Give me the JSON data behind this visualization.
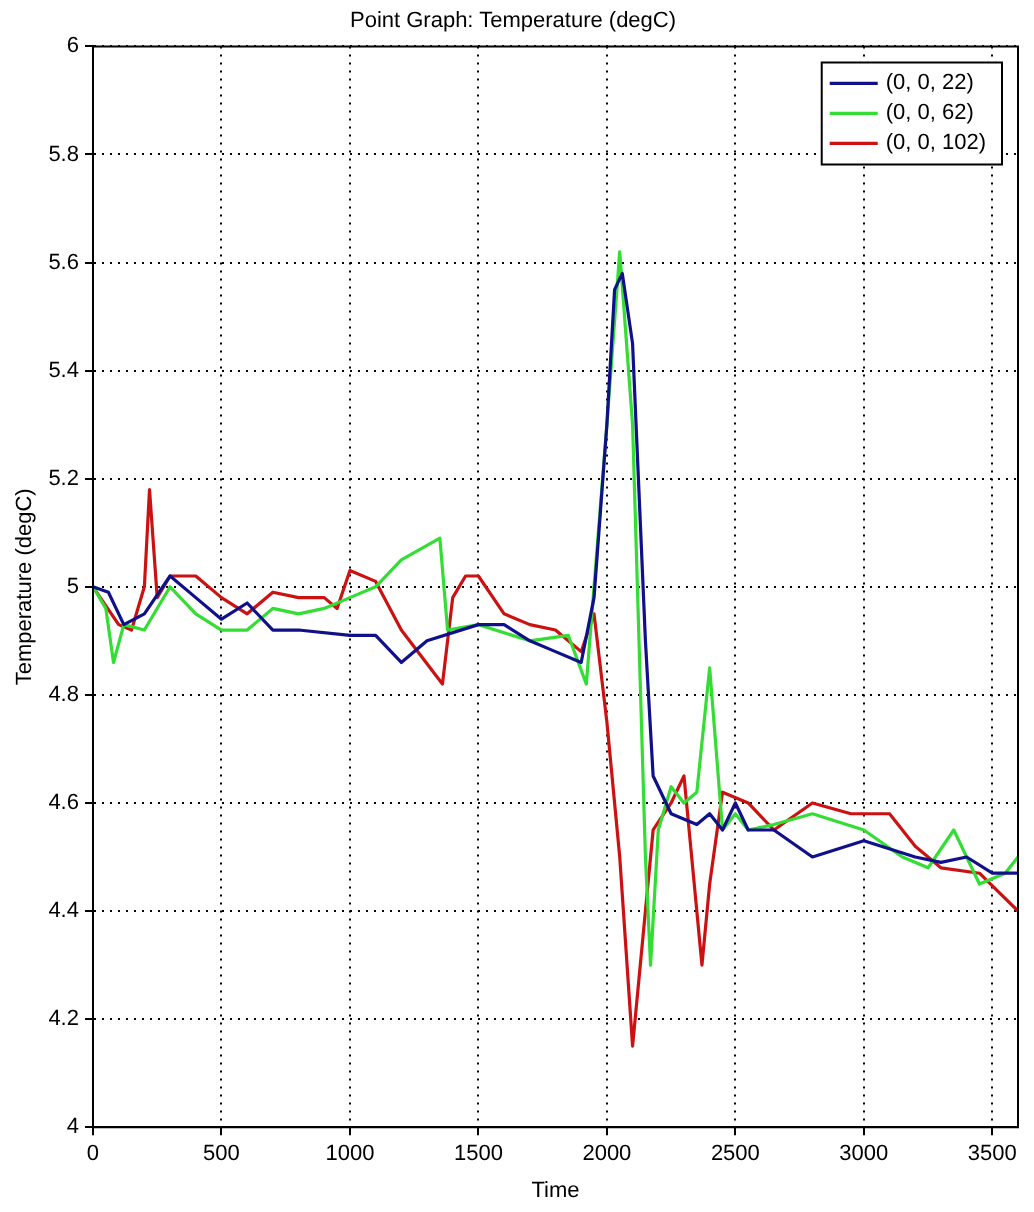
{
  "chart_data": {
    "type": "line",
    "title": "Point Graph: Temperature (degC)",
    "xlabel": "Time",
    "ylabel": "Temperature (degC)",
    "xlim": [
      0,
      3600
    ],
    "xticks": [
      0,
      500,
      1000,
      1500,
      2000,
      2500,
      3000,
      3500
    ],
    "ylim": [
      4,
      6
    ],
    "yticks": [
      4,
      4.2,
      4.4,
      4.6,
      4.8,
      5,
      5.2,
      5.4,
      5.6,
      5.8,
      6
    ],
    "grid": true,
    "legend": "top right",
    "line_style": "solid",
    "marker": "none",
    "series": [
      {
        "name": "(0, 0, 22)",
        "color": "#10108a",
        "x": [
          0,
          60,
          120,
          200,
          300,
          400,
          500,
          600,
          700,
          800,
          1000,
          1100,
          1200,
          1300,
          1500,
          1600,
          1700,
          1800,
          1900,
          1950,
          2000,
          2030,
          2060,
          2100,
          2150,
          2180,
          2250,
          2350,
          2400,
          2450,
          2500,
          2550,
          2650,
          2800,
          3000,
          3200,
          3300,
          3400,
          3500,
          3600
        ],
        "values": [
          5.0,
          4.99,
          4.93,
          4.95,
          5.02,
          4.98,
          4.94,
          4.97,
          4.92,
          4.92,
          4.91,
          4.91,
          4.86,
          4.9,
          4.93,
          4.93,
          4.9,
          4.88,
          4.86,
          4.98,
          5.3,
          5.55,
          5.58,
          5.45,
          4.9,
          4.65,
          4.58,
          4.56,
          4.58,
          4.55,
          4.6,
          4.55,
          4.55,
          4.5,
          4.53,
          4.5,
          4.49,
          4.5,
          4.47,
          4.47
        ]
      },
      {
        "name": "(0, 0, 62)",
        "color": "#33dd33",
        "x": [
          0,
          50,
          80,
          120,
          200,
          300,
          400,
          500,
          600,
          700,
          800,
          900,
          1000,
          1100,
          1200,
          1350,
          1380,
          1500,
          1700,
          1850,
          1920,
          2000,
          2050,
          2100,
          2150,
          2170,
          2200,
          2250,
          2300,
          2350,
          2400,
          2450,
          2500,
          2550,
          2650,
          2800,
          3000,
          3150,
          3250,
          3350,
          3450,
          3550,
          3600
        ],
        "values": [
          5.0,
          4.96,
          4.86,
          4.93,
          4.92,
          5.0,
          4.95,
          4.92,
          4.92,
          4.96,
          4.95,
          4.96,
          4.98,
          5.0,
          5.05,
          5.09,
          4.92,
          4.93,
          4.9,
          4.91,
          4.82,
          5.3,
          5.62,
          5.3,
          4.5,
          4.3,
          4.55,
          4.63,
          4.6,
          4.62,
          4.85,
          4.55,
          4.58,
          4.55,
          4.56,
          4.58,
          4.55,
          4.5,
          4.48,
          4.55,
          4.45,
          4.47,
          4.5
        ]
      },
      {
        "name": "(0, 0, 102)",
        "color": "#cc1111",
        "x": [
          0,
          100,
          150,
          200,
          220,
          250,
          300,
          400,
          500,
          600,
          700,
          800,
          900,
          950,
          1000,
          1100,
          1200,
          1360,
          1400,
          1450,
          1500,
          1600,
          1700,
          1800,
          1900,
          1950,
          2000,
          2050,
          2100,
          2180,
          2250,
          2300,
          2370,
          2400,
          2450,
          2550,
          2650,
          2800,
          2950,
          3100,
          3200,
          3300,
          3450,
          3600
        ],
        "values": [
          5.0,
          4.93,
          4.92,
          5.0,
          5.18,
          4.98,
          5.02,
          5.02,
          4.98,
          4.95,
          4.99,
          4.98,
          4.98,
          4.96,
          5.03,
          5.01,
          4.92,
          4.82,
          4.98,
          5.02,
          5.02,
          4.95,
          4.93,
          4.92,
          4.88,
          4.95,
          4.75,
          4.5,
          4.15,
          4.55,
          4.6,
          4.65,
          4.3,
          4.45,
          4.62,
          4.6,
          4.55,
          4.6,
          4.58,
          4.58,
          4.52,
          4.48,
          4.47,
          4.4
        ]
      }
    ]
  }
}
